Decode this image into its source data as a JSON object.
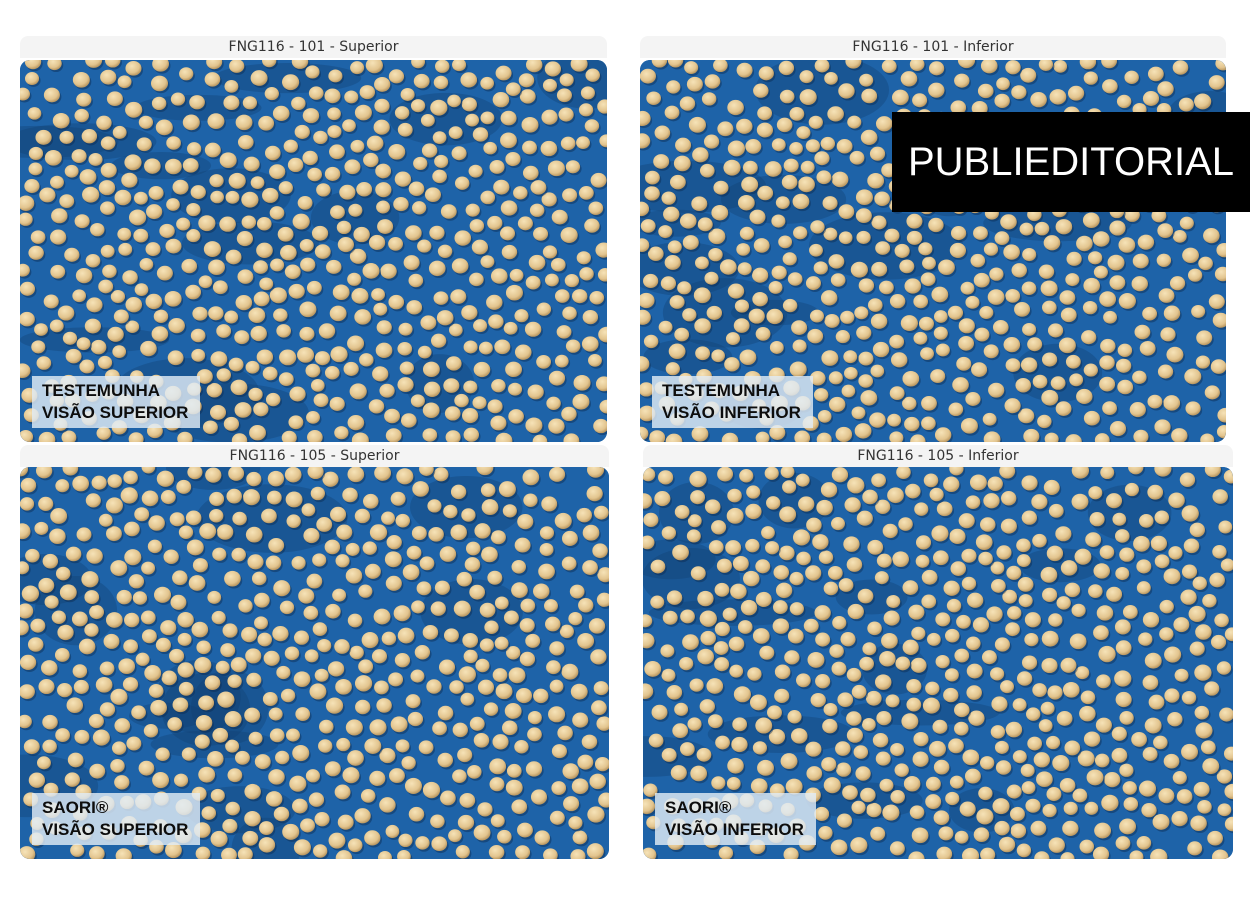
{
  "panels": [
    {
      "title": "FNG116 - 101 - Superior",
      "caption_line1": "TESTEMUNHA",
      "caption_line2": "VISÃO SUPERIOR"
    },
    {
      "title": "FNG116 - 101 - Inferior",
      "caption_line1": "TESTEMUNHA",
      "caption_line2": "VISÃO INFERIOR"
    },
    {
      "title": "FNG116 - 105 - Superior",
      "caption_line1": "SAORI®",
      "caption_line2": "VISÃO SUPERIOR"
    },
    {
      "title": "FNG116 - 105 - Inferior",
      "caption_line1": "SAORI®",
      "caption_line2": "VISÃO INFERIOR"
    }
  ],
  "badge": {
    "label": "PUBLIEDITORIAL"
  },
  "colors": {
    "background_blue": "#1e63a8",
    "seed": "#e2c48e",
    "badge_bg": "#000000",
    "badge_text": "#ffffff"
  }
}
